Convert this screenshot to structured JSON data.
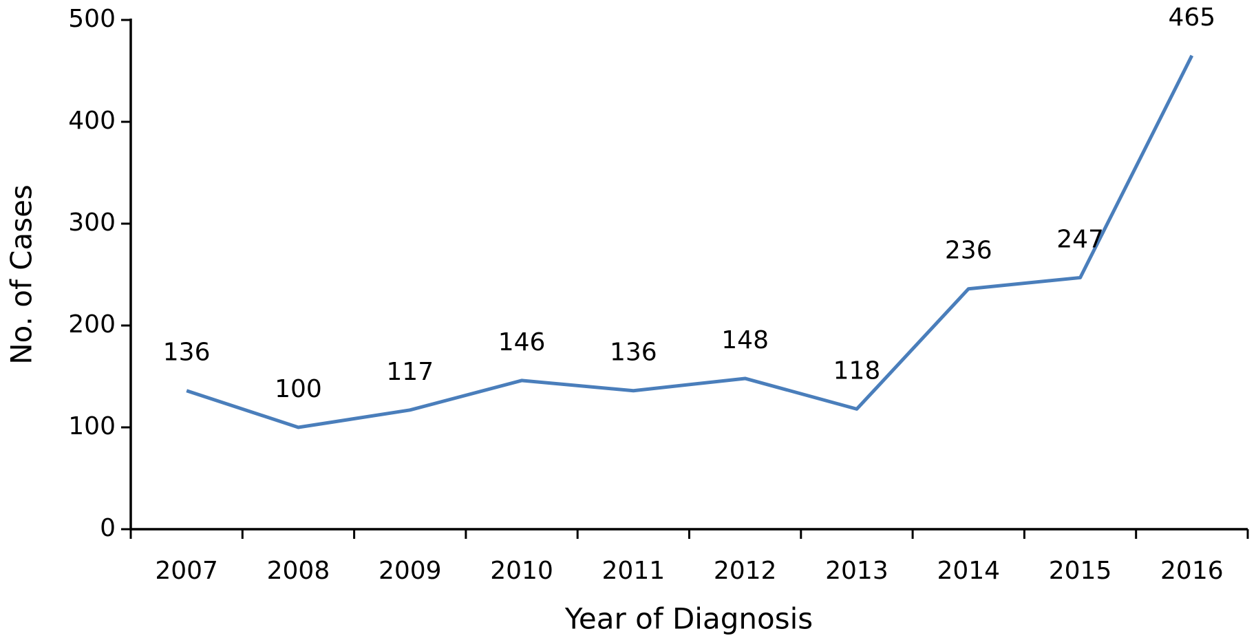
{
  "chart_data": {
    "type": "line",
    "x_label": "Year of Diagnosis",
    "y_label": "No. of Cases",
    "categories": [
      "2007",
      "2008",
      "2009",
      "2010",
      "2011",
      "2012",
      "2013",
      "2014",
      "2015",
      "2016"
    ],
    "series": [
      {
        "name": "Cases",
        "color": "#4a7ebb",
        "values": [
          136,
          100,
          117,
          146,
          136,
          148,
          118,
          236,
          247,
          465
        ]
      }
    ],
    "ylim": [
      0,
      500
    ],
    "yticks": [
      0,
      100,
      200,
      300,
      400,
      500
    ],
    "grid": false
  }
}
